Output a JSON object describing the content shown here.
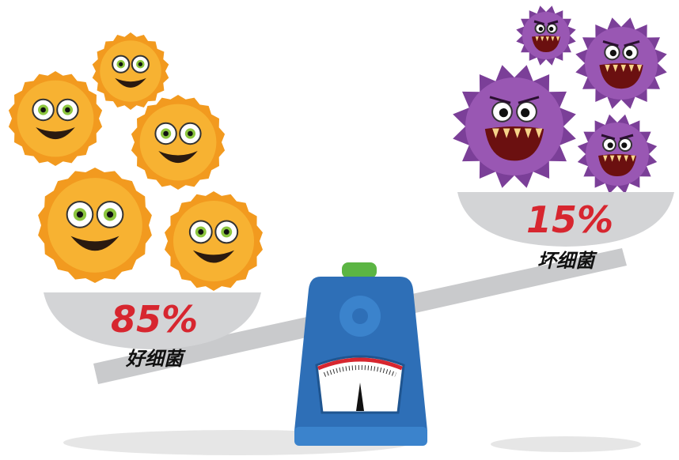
{
  "left": {
    "percent": "85%",
    "label": "好细菌"
  },
  "right": {
    "percent": "15%",
    "label": "坏细菌"
  }
}
